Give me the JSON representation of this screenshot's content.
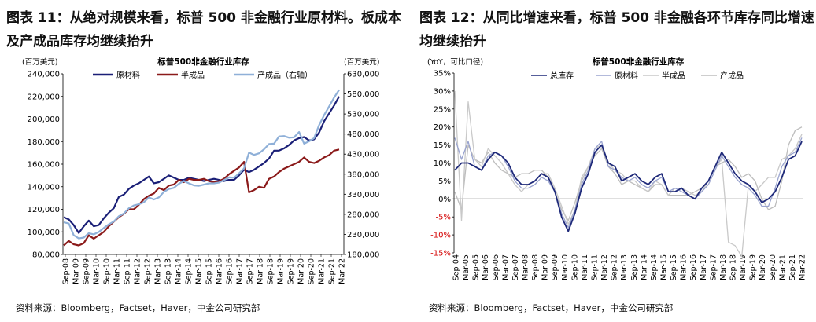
{
  "colors": {
    "raw": "#1a1f77",
    "semi": "#8b1a1a",
    "finished": "#8fb0d8",
    "total": "#1f2a7a",
    "r_raw": "#9aa4cf",
    "r_semi": "#c9c9c9",
    "r_finished": "#bdbdbd"
  },
  "left": {
    "title": "图表 11：从绝对规模来看，标普 500 非金融行业原材料。板成本及产成品库存均继续抬升",
    "source": "资料来源：Bloomberg，Factset，Haver，中金公司研究部"
  },
  "right": {
    "title": "图表 12：从同比增速来看，标普 500 非金融各环节库存同比增速均继续抬升",
    "source": "资料来源：Bloomberg，Factset，Haver，中金公司研究部"
  },
  "chart_data": [
    {
      "type": "line",
      "title": "标普500非金融行业库存",
      "y_unit_left": "(百万美元)",
      "y_unit_right": "(百万美元)",
      "ylim": [
        80000,
        240000
      ],
      "yticks": [
        "80,000",
        "100,000",
        "120,000",
        "140,000",
        "160,000",
        "180,000",
        "200,000",
        "220,000",
        "240,000"
      ],
      "y2lim": [
        180000,
        630000
      ],
      "y2ticks": [
        "180,000",
        "230,000",
        "280,000",
        "330,000",
        "380,000",
        "430,000",
        "480,000",
        "530,000",
        "580,000",
        "630,000"
      ],
      "xtick_labels": [
        "Sep-08",
        "Mar-09",
        "Sep-09",
        "Mar-10",
        "Sep-10",
        "Mar-11",
        "Sep-11",
        "Mar-12",
        "Sep-12",
        "Mar-13",
        "Sep-13",
        "Mar-14",
        "Sep-14",
        "Mar-15",
        "Sep-15",
        "Mar-16",
        "Sep-16",
        "Mar-17",
        "Sep-17",
        "Mar-18",
        "Sep-18",
        "Mar-19",
        "Sep-19",
        "Mar-20",
        "Sep-20",
        "Mar-21",
        "Sep-21",
        "Mar-22"
      ],
      "series": [
        {
          "name": "原材料",
          "key": "raw",
          "axis": "left",
          "values": [
            113000,
            111000,
            106000,
            99000,
            105000,
            110000,
            105000,
            106000,
            112000,
            117000,
            121000,
            131000,
            133000,
            138000,
            141000,
            143000,
            146000,
            149000,
            143000,
            144000,
            147000,
            150000,
            148000,
            146000,
            146000,
            148000,
            147000,
            146000,
            145000,
            146000,
            147000,
            146000,
            145000,
            146000,
            146000,
            150000,
            155000,
            153000,
            155000,
            158000,
            161000,
            165000,
            172000,
            172000,
            174000,
            177000,
            181000,
            183000,
            184000,
            181000,
            182000,
            188000,
            198000,
            205000,
            212000,
            220000
          ]
        },
        {
          "name": "半成品",
          "key": "semi",
          "axis": "left",
          "values": [
            88000,
            92000,
            89000,
            88000,
            90000,
            97000,
            94000,
            97000,
            100000,
            105000,
            109000,
            113000,
            116000,
            120000,
            120000,
            124000,
            129000,
            132000,
            134000,
            139000,
            137000,
            141000,
            142000,
            146000,
            144000,
            147000,
            146000,
            146000,
            147000,
            145000,
            144000,
            145000,
            147000,
            151000,
            154000,
            157000,
            162000,
            135000,
            137000,
            140000,
            139000,
            147000,
            149000,
            153000,
            156000,
            158000,
            160000,
            162000,
            166000,
            162000,
            161000,
            163000,
            166000,
            168000,
            172000,
            173000
          ]
        },
        {
          "name": "产成品（右轴）",
          "key": "finished",
          "axis": "right",
          "values": [
            260000,
            257000,
            228000,
            220000,
            222000,
            233000,
            230000,
            236000,
            246000,
            255000,
            262000,
            275000,
            282000,
            295000,
            302000,
            305000,
            310000,
            322000,
            317000,
            322000,
            336000,
            343000,
            346000,
            356000,
            363000,
            357000,
            352000,
            351000,
            354000,
            357000,
            357000,
            359000,
            365000,
            372000,
            371000,
            382000,
            394000,
            434000,
            428000,
            432000,
            442000,
            455000,
            456000,
            474000,
            475000,
            471000,
            472000,
            485000,
            456000,
            462000,
            470000,
            502000,
            527000,
            549000,
            571000,
            590000
          ]
        }
      ]
    },
    {
      "type": "line",
      "title": "标普500非金融行业库存",
      "y_unit_left": "(YoY，可比口径)",
      "ylim": [
        -15,
        35
      ],
      "yticks": [
        "-15%",
        "-10%",
        "-5%",
        "0%",
        "5%",
        "10%",
        "15%",
        "20%",
        "25%",
        "30%",
        "35%"
      ],
      "xtick_labels": [
        "Sep-04",
        "Mar-05",
        "Sep-05",
        "Mar-06",
        "Sep-06",
        "Mar-07",
        "Sep-07",
        "Mar-08",
        "Sep-08",
        "Mar-09",
        "Sep-09",
        "Mar-10",
        "Sep-10",
        "Mar-11",
        "Sep-11",
        "Mar-12",
        "Sep-12",
        "Mar-13",
        "Sep-13",
        "Mar-14",
        "Sep-14",
        "Mar-15",
        "Sep-15",
        "Mar-16",
        "Sep-16",
        "Mar-17",
        "Sep-17",
        "Mar-18",
        "Sep-18",
        "Mar-19",
        "Sep-19",
        "Mar-20",
        "Sep-20",
        "Mar-21",
        "Sep-21",
        "Mar-22"
      ],
      "series": [
        {
          "name": "总库存",
          "key": "total",
          "values": [
            8,
            10,
            10,
            9,
            8,
            11,
            13,
            12,
            10,
            6,
            4,
            4,
            5,
            7,
            6,
            2,
            -5,
            -9,
            -4,
            3,
            7,
            13,
            15,
            10,
            9,
            5,
            6,
            7,
            5,
            4,
            6,
            7,
            2,
            2,
            3,
            1,
            0,
            3,
            5,
            9,
            13,
            10,
            7,
            5,
            4,
            2,
            -1,
            0,
            2,
            6,
            11,
            12,
            16
          ]
        },
        {
          "name": "原材料",
          "key": "r_raw",
          "values": [
            17,
            11,
            16,
            9,
            8,
            12,
            13,
            12,
            9,
            5,
            3,
            3,
            4,
            6,
            5,
            2,
            -4,
            -8,
            -3,
            4,
            8,
            14,
            16,
            9,
            8,
            6,
            5,
            6,
            4,
            3,
            5,
            6,
            2,
            3,
            2,
            1,
            0,
            2,
            4,
            8,
            12,
            9,
            6,
            4,
            3,
            1,
            -2,
            -2,
            3,
            9,
            12,
            13,
            17
          ]
        },
        {
          "name": "半成品",
          "key": "r_semi",
          "values": [
            30,
            -6,
            27,
            11,
            9,
            14,
            12,
            10,
            7,
            4,
            2,
            4,
            5,
            7,
            7,
            3,
            -2,
            -7,
            -3,
            6,
            9,
            14,
            15,
            10,
            8,
            7,
            5,
            5,
            3,
            2,
            5,
            4,
            1,
            3,
            3,
            2,
            1,
            2,
            5,
            9,
            11,
            -12,
            -13,
            -16,
            4,
            2,
            4,
            6,
            6,
            11,
            12,
            14,
            18
          ]
        },
        {
          "name": "产成品",
          "key": "r_finished",
          "values": [
            2,
            -3,
            15,
            11,
            10,
            13,
            10,
            8,
            7,
            6,
            7,
            7,
            8,
            8,
            6,
            2,
            -3,
            -6,
            -1,
            5,
            9,
            12,
            14,
            9,
            7,
            4,
            5,
            4,
            3,
            2,
            4,
            4,
            1,
            1,
            1,
            1,
            2,
            3,
            5,
            9,
            10,
            11,
            9,
            6,
            7,
            5,
            0,
            -3,
            -2,
            5,
            15,
            19,
            20
          ]
        }
      ]
    }
  ]
}
